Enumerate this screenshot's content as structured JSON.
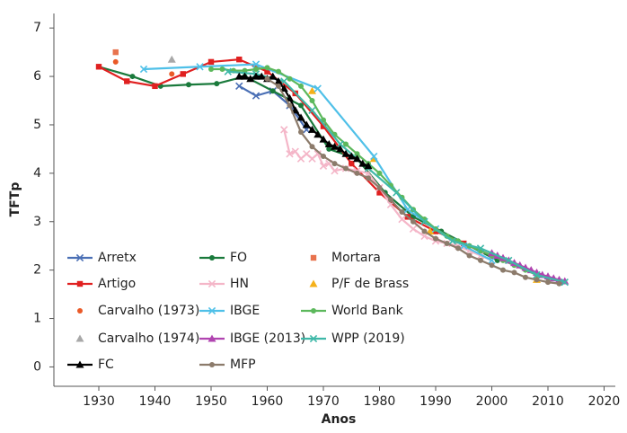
{
  "chart_data": {
    "type": "line",
    "xlabel": "Anos",
    "ylabel": "TFTp",
    "xlim": [
      1922,
      2022
    ],
    "ylim": [
      -0.4,
      7.3
    ],
    "xticks": [
      1930,
      1940,
      1950,
      1960,
      1970,
      1980,
      1990,
      2000,
      2010,
      2020
    ],
    "yticks": [
      0,
      1,
      2,
      3,
      4,
      5,
      6,
      7
    ],
    "grid": false,
    "legend": "lower left",
    "series": [
      {
        "name": "Arretx",
        "color": "#4a6fb5",
        "marker": "x",
        "line": true,
        "x": [
          1955,
          1958,
          1961,
          1964,
          1967
        ],
        "values": [
          5.8,
          5.6,
          5.7,
          5.4,
          4.9
        ]
      },
      {
        "name": "FO",
        "color": "#1a7a3c",
        "marker": "circle",
        "line": true,
        "x": [
          1930,
          1936,
          1941,
          1946,
          1951,
          1956,
          1961,
          1966,
          1971,
          1976,
          1981,
          1986,
          1991,
          1996,
          2001
        ],
        "values": [
          6.2,
          6.0,
          5.8,
          5.83,
          5.85,
          6.0,
          5.7,
          5.4,
          4.5,
          4.3,
          3.6,
          3.1,
          2.8,
          2.5,
          2.2
        ]
      },
      {
        "name": "Mortara",
        "color": "#e8734e",
        "marker": "square",
        "line": false,
        "x": [
          1933
        ],
        "values": [
          6.5
        ]
      },
      {
        "name": "Artigo",
        "color": "#e02020",
        "marker": "square",
        "line": true,
        "x": [
          1930,
          1935,
          1940,
          1945,
          1950,
          1955,
          1960,
          1965,
          1970,
          1975,
          1980,
          1985,
          1990,
          1995,
          2000
        ],
        "values": [
          6.2,
          5.9,
          5.8,
          6.05,
          6.3,
          6.35,
          6.1,
          5.65,
          4.97,
          4.2,
          3.6,
          3.1,
          2.8,
          2.55,
          2.3
        ]
      },
      {
        "name": "HN",
        "color": "#f4b6c8",
        "marker": "x",
        "line": true,
        "x": [
          1963,
          1964,
          1965,
          1966,
          1967,
          1968,
          1969,
          1970,
          1971,
          1972,
          1974,
          1976,
          1978,
          1980,
          1982,
          1984,
          1986,
          1988,
          1990,
          1992,
          1994,
          1996,
          1998,
          2000
        ],
        "values": [
          4.9,
          4.4,
          4.45,
          4.3,
          4.4,
          4.3,
          4.4,
          4.15,
          4.2,
          4.05,
          4.1,
          4.05,
          4.0,
          3.7,
          3.35,
          3.05,
          2.85,
          2.7,
          2.6,
          2.55,
          2.5,
          2.4,
          2.3,
          2.2
        ]
      },
      {
        "name": "P/F de Brass",
        "color": "#f5b11a",
        "marker": "triangle",
        "line": false,
        "x": [
          1968,
          1979,
          1989,
          2008
        ],
        "values": [
          5.7,
          4.3,
          2.8,
          1.8
        ]
      },
      {
        "name": "Carvalho (1973)",
        "color": "#ea5a28",
        "marker": "circle",
        "line": false,
        "x": [
          1933,
          1943
        ],
        "values": [
          6.3,
          6.05
        ]
      },
      {
        "name": "IBGE",
        "color": "#4fc0e8",
        "marker": "x",
        "line": true,
        "x": [
          1938,
          1948,
          1958,
          1969,
          1979,
          1985,
          1990,
          1995,
          2000
        ],
        "values": [
          6.15,
          6.2,
          6.25,
          5.75,
          4.35,
          3.25,
          2.85,
          2.5,
          2.2
        ]
      },
      {
        "name": "World Bank",
        "color": "#5cb85c",
        "marker": "circle",
        "line": true,
        "x": [
          1950,
          1952,
          1954,
          1956,
          1958,
          1960,
          1962,
          1964,
          1966,
          1968,
          1970,
          1972,
          1974,
          1976,
          1978,
          1980,
          1982,
          1984,
          1986,
          1988,
          1990,
          1992,
          1994,
          1996,
          1998,
          2000,
          2002,
          2004,
          2006,
          2008,
          2010,
          2012
        ],
        "values": [
          6.15,
          6.15,
          6.12,
          6.12,
          6.15,
          6.18,
          6.1,
          5.95,
          5.8,
          5.5,
          5.1,
          4.8,
          4.6,
          4.4,
          4.2,
          4.0,
          3.75,
          3.5,
          3.25,
          3.05,
          2.85,
          2.7,
          2.6,
          2.5,
          2.4,
          2.3,
          2.2,
          2.1,
          2.0,
          1.9,
          1.83,
          1.78
        ]
      },
      {
        "name": "Carvalho (1974)",
        "color": "#a8a8a8",
        "marker": "triangle",
        "line": false,
        "x": [
          1943
        ],
        "values": [
          6.35
        ]
      },
      {
        "name": "IBGE (2013)",
        "color": "#b044b0",
        "marker": "triangle",
        "line": true,
        "x": [
          2000,
          2001,
          2002,
          2003,
          2004,
          2005,
          2006,
          2007,
          2008,
          2009,
          2010,
          2011,
          2012,
          2013
        ],
        "values": [
          2.35,
          2.3,
          2.25,
          2.2,
          2.15,
          2.1,
          2.05,
          2.0,
          1.95,
          1.9,
          1.87,
          1.83,
          1.8,
          1.77
        ]
      },
      {
        "name": "WPP (2019)",
        "color": "#3fb8a8",
        "marker": "x",
        "line": true,
        "x": [
          1953,
          1958,
          1963,
          1968,
          1973,
          1978,
          1983,
          1988,
          1993,
          1998,
          2003,
          2008,
          2013
        ],
        "values": [
          6.1,
          6.05,
          5.9,
          5.3,
          4.6,
          4.1,
          3.6,
          3.0,
          2.6,
          2.45,
          2.2,
          1.9,
          1.75
        ]
      },
      {
        "name": "FC",
        "color": "#000000",
        "marker": "triangle",
        "line": true,
        "x": [
          1955,
          1956,
          1957,
          1958,
          1959,
          1960,
          1961,
          1962,
          1963,
          1964,
          1965,
          1966,
          1967,
          1968,
          1969,
          1970,
          1971,
          1972,
          1973,
          1974,
          1975,
          1976,
          1977,
          1978
        ],
        "values": [
          6.0,
          6.0,
          5.95,
          6.0,
          6.0,
          5.95,
          6.0,
          5.9,
          5.75,
          5.55,
          5.3,
          5.15,
          5.0,
          4.9,
          4.8,
          4.7,
          4.6,
          4.55,
          4.5,
          4.4,
          4.35,
          4.3,
          4.2,
          4.15
        ]
      },
      {
        "name": "MFP",
        "color": "#8c7b6b",
        "marker": "circle",
        "line": true,
        "x": [
          1960,
          1962,
          1964,
          1966,
          1968,
          1970,
          1972,
          1974,
          1976,
          1978,
          1980,
          1982,
          1984,
          1986,
          1988,
          1990,
          1992,
          1994,
          1996,
          1998,
          2000,
          2002,
          2004,
          2006,
          2008,
          2010,
          2012
        ],
        "values": [
          5.95,
          5.8,
          5.4,
          4.85,
          4.55,
          4.35,
          4.2,
          4.1,
          4.0,
          3.9,
          3.7,
          3.45,
          3.2,
          3.0,
          2.8,
          2.65,
          2.55,
          2.45,
          2.3,
          2.2,
          2.1,
          2.0,
          1.95,
          1.85,
          1.8,
          1.75,
          1.72
        ]
      }
    ]
  }
}
